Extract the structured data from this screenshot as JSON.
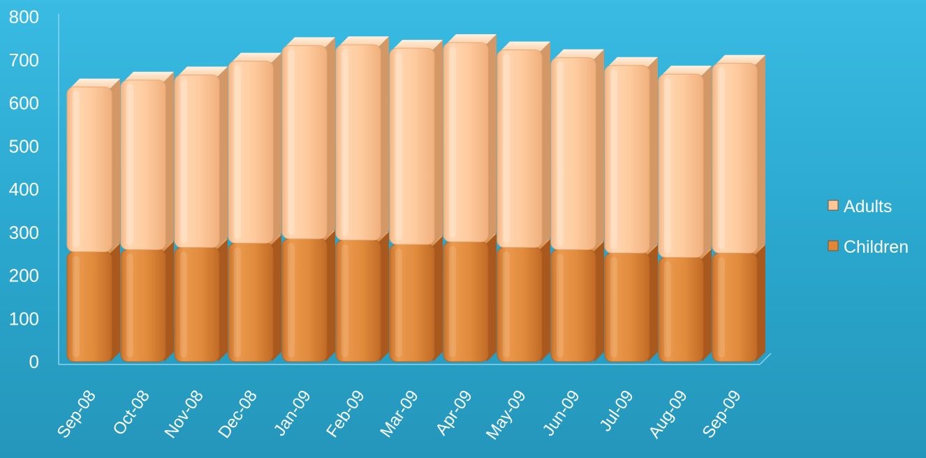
{
  "chart_data": {
    "type": "bar",
    "stacked": true,
    "three_d": true,
    "categories": [
      "Sep-08",
      "Oct-08",
      "Nov-08",
      "Dec-08",
      "Jan-09",
      "Feb-09",
      "Mar-09",
      "Apr-09",
      "May-09",
      "Jun-09",
      "Jul-09",
      "Aug-09",
      "Sep-09"
    ],
    "series": [
      {
        "name": "Children",
        "values": [
          255,
          260,
          265,
          275,
          285,
          282,
          272,
          278,
          265,
          260,
          252,
          242,
          252
        ],
        "color": "#e08838"
      },
      {
        "name": "Adults",
        "values": [
          382,
          393,
          400,
          422,
          448,
          453,
          455,
          462,
          458,
          445,
          435,
          425,
          440
        ],
        "color": "#fdc79a"
      }
    ],
    "y_ticks": [
      "0",
      "100",
      "200",
      "300",
      "400",
      "500",
      "600",
      "700",
      "800"
    ],
    "ylim": [
      0,
      800
    ],
    "grid": false,
    "legend_position": "right",
    "title": "",
    "xlabel": "",
    "ylabel": ""
  }
}
